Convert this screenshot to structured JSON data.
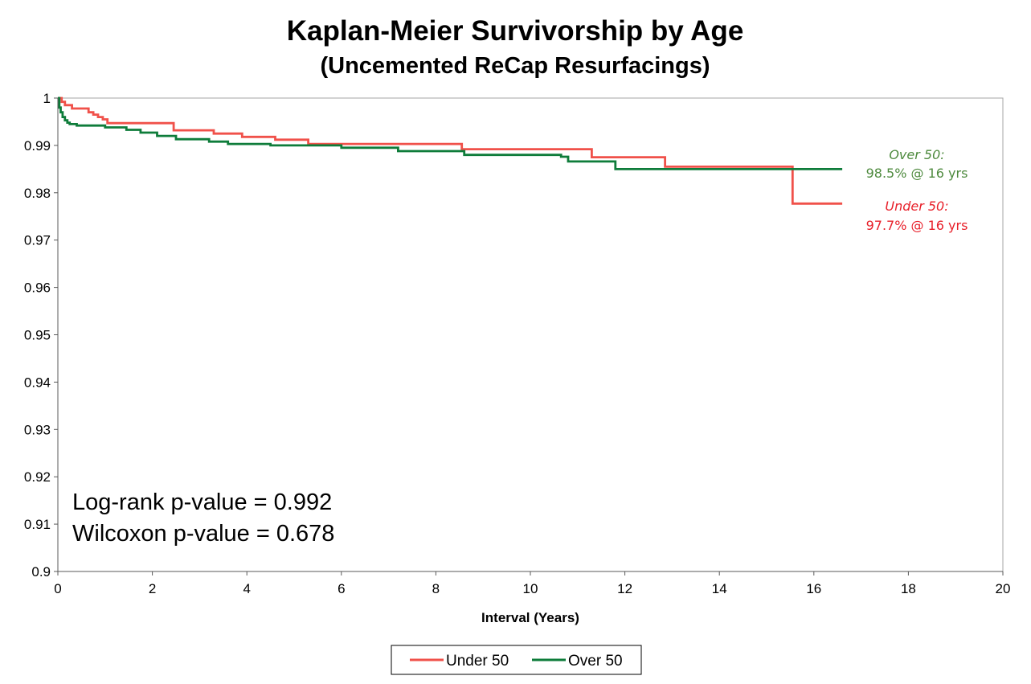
{
  "chart_data": {
    "type": "line",
    "title": "Kaplan-Meier Survivorship by Age",
    "subtitle": "(Uncemented ReCap Resurfacings)",
    "xlabel": "Interval (Years)",
    "ylabel": "",
    "xlim": [
      0,
      20
    ],
    "ylim": [
      0.9,
      1
    ],
    "x_ticks": [
      0,
      2,
      4,
      6,
      8,
      10,
      12,
      14,
      16,
      18,
      20
    ],
    "y_ticks": [
      0.9,
      0.91,
      0.92,
      0.93,
      0.94,
      0.95,
      0.96,
      0.97,
      0.98,
      0.99,
      1
    ],
    "grid": false,
    "step": true,
    "legend_position": "bottom-center",
    "series": [
      {
        "name": "Under 50",
        "color": "#f0514a",
        "x": [
          0,
          0.08,
          0.15,
          0.3,
          0.65,
          0.75,
          0.85,
          0.95,
          1.05,
          2.45,
          3.3,
          3.9,
          4.6,
          5.3,
          8.55,
          11.3,
          12.85,
          15.55,
          16.6
        ],
        "y": [
          1,
          0.9992,
          0.9985,
          0.9978,
          0.997,
          0.9965,
          0.996,
          0.9955,
          0.9947,
          0.9932,
          0.9925,
          0.9918,
          0.9912,
          0.9903,
          0.9892,
          0.9875,
          0.9855,
          0.9777,
          0.9777
        ]
      },
      {
        "name": "Over 50",
        "color": "#0e7c3a",
        "x": [
          0,
          0.03,
          0.06,
          0.1,
          0.15,
          0.2,
          0.25,
          0.4,
          1.0,
          1.45,
          1.75,
          2.1,
          2.5,
          3.2,
          3.6,
          4.5,
          6.0,
          7.2,
          8.6,
          10.65,
          10.8,
          11.8,
          16.6
        ],
        "y": [
          1,
          0.998,
          0.997,
          0.996,
          0.9953,
          0.9948,
          0.9945,
          0.9942,
          0.9938,
          0.9933,
          0.9927,
          0.992,
          0.9913,
          0.9908,
          0.9903,
          0.99,
          0.9895,
          0.9888,
          0.988,
          0.9876,
          0.9866,
          0.985,
          0.985
        ]
      }
    ],
    "annotations": [
      {
        "series": "Over 50",
        "label": "Over 50:",
        "value": "98.5% @ 16 yrs",
        "color": "#4e8a3e"
      },
      {
        "series": "Under 50",
        "label": "Under 50:",
        "value": "97.7% @ 16 yrs",
        "color": "#e8202a"
      }
    ],
    "stats": [
      "Log-rank p-value = 0.992",
      "Wilcoxon p-value = 0.678"
    ]
  }
}
